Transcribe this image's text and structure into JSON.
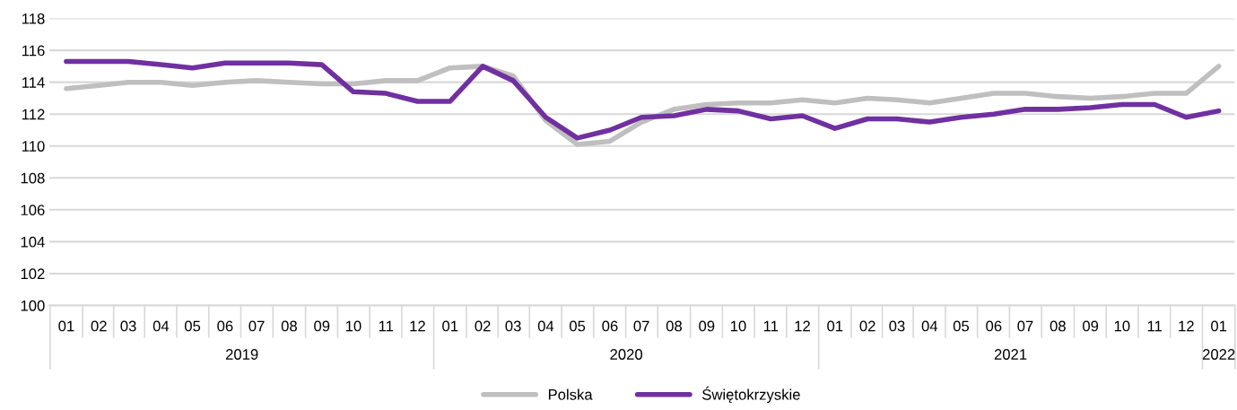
{
  "chart_data": {
    "type": "line",
    "x": [
      "2019-01",
      "2019-02",
      "2019-03",
      "2019-04",
      "2019-05",
      "2019-06",
      "2019-07",
      "2019-08",
      "2019-09",
      "2019-10",
      "2019-11",
      "2019-12",
      "2020-01",
      "2020-02",
      "2020-03",
      "2020-04",
      "2020-05",
      "2020-06",
      "2020-07",
      "2020-08",
      "2020-09",
      "2020-10",
      "2020-11",
      "2020-12",
      "2021-01",
      "2021-02",
      "2021-03",
      "2021-04",
      "2021-05",
      "2021-06",
      "2021-07",
      "2021-08",
      "2021-09",
      "2021-10",
      "2021-11",
      "2021-12",
      "2022-01"
    ],
    "series": [
      {
        "name": "Polska",
        "color": "#bfbfbf",
        "values": [
          113.6,
          113.8,
          114.0,
          114.0,
          113.8,
          114.0,
          114.1,
          114.0,
          113.9,
          113.9,
          114.1,
          114.1,
          114.9,
          115.0,
          114.4,
          111.6,
          110.1,
          110.3,
          111.5,
          112.3,
          112.6,
          112.7,
          112.7,
          112.9,
          112.7,
          113.0,
          112.9,
          112.7,
          113.0,
          113.3,
          113.3,
          113.1,
          113.0,
          113.1,
          113.3,
          113.3,
          115.0
        ]
      },
      {
        "name": "Świętokrzyskie",
        "color": "#7030a0",
        "values": [
          115.3,
          115.3,
          115.3,
          115.1,
          114.9,
          115.2,
          115.2,
          115.2,
          115.1,
          113.4,
          113.3,
          112.8,
          112.8,
          115.0,
          114.1,
          111.8,
          110.5,
          111.0,
          111.8,
          111.9,
          112.3,
          112.2,
          111.7,
          111.9,
          111.1,
          111.7,
          111.7,
          111.5,
          111.8,
          112.0,
          112.3,
          112.3,
          112.4,
          112.6,
          112.6,
          111.8,
          112.2
        ]
      }
    ],
    "xlim": [
      "2018-12-16",
      "2022-01-16"
    ],
    "xticks": [
      {
        "value": "2019-01",
        "label": "01"
      },
      {
        "value": "2019-02",
        "label": "02"
      },
      {
        "value": "2019-03",
        "label": "03"
      },
      {
        "value": "2019-04",
        "label": "04"
      },
      {
        "value": "2019-05",
        "label": "05"
      },
      {
        "value": "2019-06",
        "label": "06"
      },
      {
        "value": "2019-07",
        "label": "07"
      },
      {
        "value": "2019-08",
        "label": "08"
      },
      {
        "value": "2019-09",
        "label": "09"
      },
      {
        "value": "2019-10",
        "label": "10"
      },
      {
        "value": "2019-11",
        "label": "11"
      },
      {
        "value": "2019-12",
        "label": "12"
      },
      {
        "value": "2020-01",
        "label": "01"
      },
      {
        "value": "2020-02",
        "label": "02"
      },
      {
        "value": "2020-03",
        "label": "03"
      },
      {
        "value": "2020-04",
        "label": "04"
      },
      {
        "value": "2020-05",
        "label": "05"
      },
      {
        "value": "2020-06",
        "label": "06"
      },
      {
        "value": "2020-07",
        "label": "07"
      },
      {
        "value": "2020-08",
        "label": "08"
      },
      {
        "value": "2020-09",
        "label": "09"
      },
      {
        "value": "2020-10",
        "label": "10"
      },
      {
        "value": "2020-11",
        "label": "11"
      },
      {
        "value": "2020-12",
        "label": "12"
      },
      {
        "value": "2021-01",
        "label": "01"
      },
      {
        "value": "2021-02",
        "label": "02"
      },
      {
        "value": "2021-03",
        "label": "03"
      },
      {
        "value": "2021-04",
        "label": "04"
      },
      {
        "value": "2021-05",
        "label": "05"
      },
      {
        "value": "2021-06",
        "label": "06"
      },
      {
        "value": "2021-07",
        "label": "07"
      },
      {
        "value": "2021-08",
        "label": "08"
      },
      {
        "value": "2021-09",
        "label": "09"
      },
      {
        "value": "2021-10",
        "label": "10"
      },
      {
        "value": "2021-11",
        "label": "11"
      },
      {
        "value": "2021-12",
        "label": "12"
      },
      {
        "value": "2022-01",
        "label": "01"
      }
    ],
    "annotations": [
      "2019",
      "2020",
      "2021",
      "2022"
    ],
    "ylim": [
      100,
      118
    ],
    "yticks": [
      100,
      102,
      104,
      106,
      108,
      110,
      112,
      114,
      116,
      118
    ],
    "grid": "y",
    "legend": "bottom",
    "marker": "none",
    "line_style": "solid"
  }
}
